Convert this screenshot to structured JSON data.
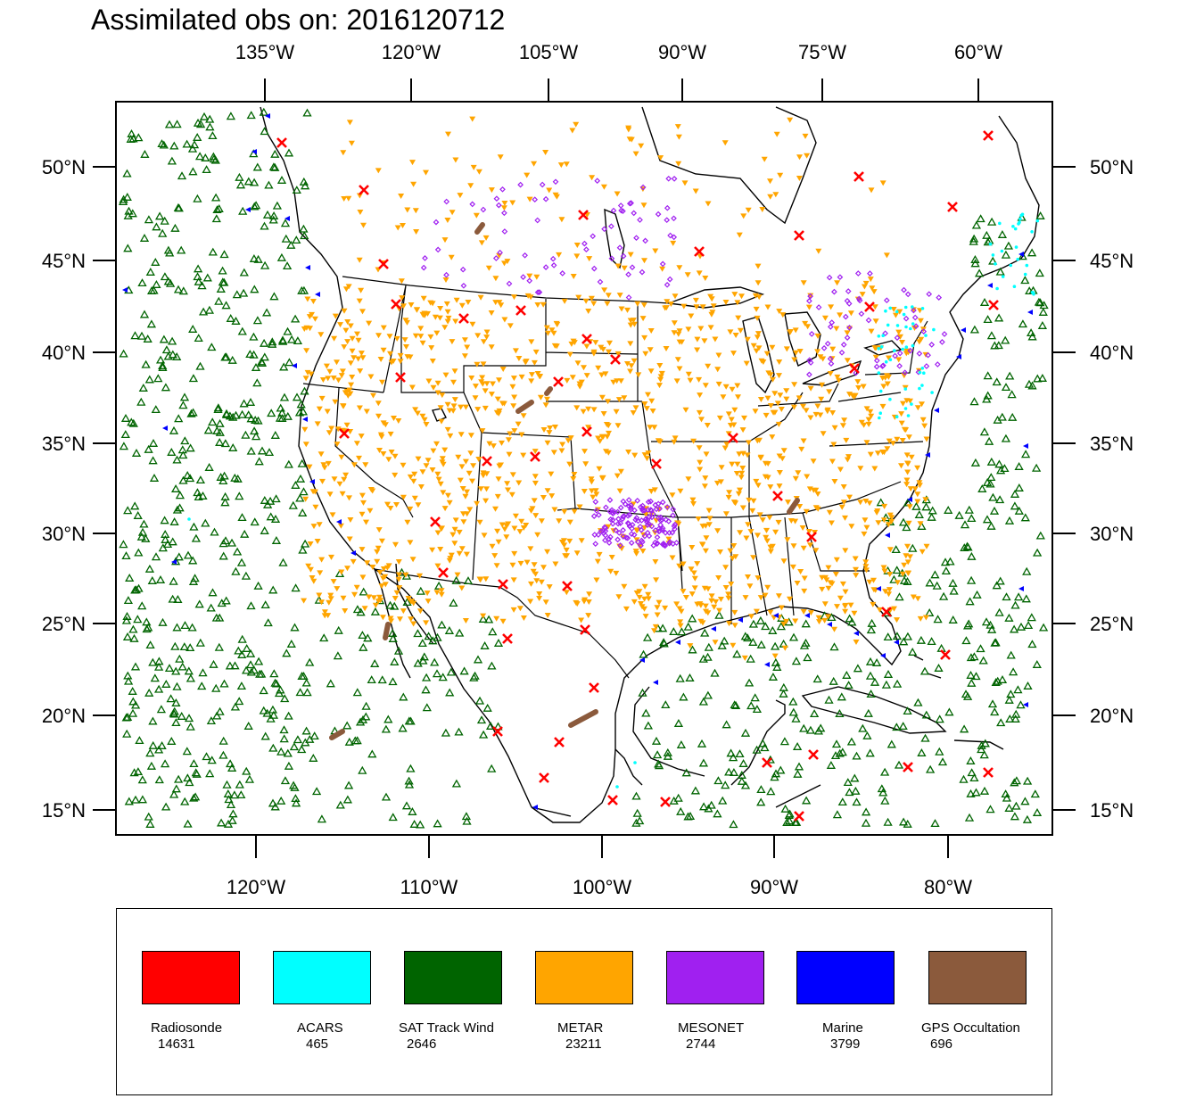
{
  "title": "Assimilated obs on: 2016120712",
  "top_lon_labels": [
    "135°W",
    "120°W",
    "105°W",
    "90°W",
    "75°W",
    "60°W"
  ],
  "bottom_lon_labels": [
    "120°W",
    "110°W",
    "100°W",
    "90°W",
    "80°W"
  ],
  "lat_labels": [
    "50°N",
    "45°N",
    "40°N",
    "35°N",
    "30°N",
    "25°N",
    "20°N",
    "15°N"
  ],
  "colors": {
    "radiosonde": "#ff0000",
    "acars": "#00ffff",
    "sat_track_wind": "#006400",
    "metar": "#ffa500",
    "mesonet": "#a020f0",
    "marine": "#0000ff",
    "gps_occultation": "#8b5a3c"
  },
  "legend": [
    {
      "name": "Radiosonde",
      "count": "14631",
      "color": "#ff0000"
    },
    {
      "name": "ACARS",
      "count": "465",
      "color": "#00ffff"
    },
    {
      "name": "SAT Track Wind",
      "count": "2646",
      "color": "#006400"
    },
    {
      "name": "METAR",
      "count": "23211",
      "color": "#ffa500"
    },
    {
      "name": "MESONET",
      "count": "2744",
      "color": "#a020f0"
    },
    {
      "name": "Marine",
      "count": "3799",
      "color": "#0000ff"
    },
    {
      "name": "GPS Occultation",
      "count": "696",
      "color": "#8b5a3c"
    }
  ]
}
